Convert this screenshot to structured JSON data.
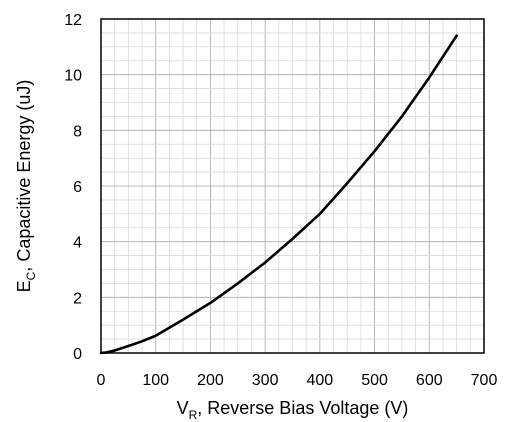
{
  "chart_data": {
    "type": "line",
    "title": "",
    "xlabel": {
      "main": "V",
      "sub": "R",
      "rest": ", Reverse Bias Voltage (V)"
    },
    "ylabel": {
      "main": "E",
      "sub": "C",
      "rest": ", Capacitive Energy (uJ)"
    },
    "xlim": [
      0,
      700
    ],
    "ylim": [
      0,
      12
    ],
    "x_ticks": [
      0,
      100,
      200,
      300,
      400,
      500,
      600,
      700
    ],
    "y_ticks": [
      0,
      2,
      4,
      6,
      8,
      10,
      12
    ],
    "x_minor_step": 25,
    "y_minor_step": 0.5,
    "grid": true,
    "series": [
      {
        "x": [
          0,
          10,
          25,
          50,
          75,
          100,
          150,
          200,
          250,
          300,
          350,
          400,
          450,
          500,
          550,
          600,
          650
        ],
        "y": [
          0,
          0.02,
          0.09,
          0.25,
          0.42,
          0.62,
          1.2,
          1.8,
          2.5,
          3.25,
          4.1,
          5.0,
          6.1,
          7.25,
          8.5,
          9.9,
          11.4
        ]
      }
    ]
  }
}
